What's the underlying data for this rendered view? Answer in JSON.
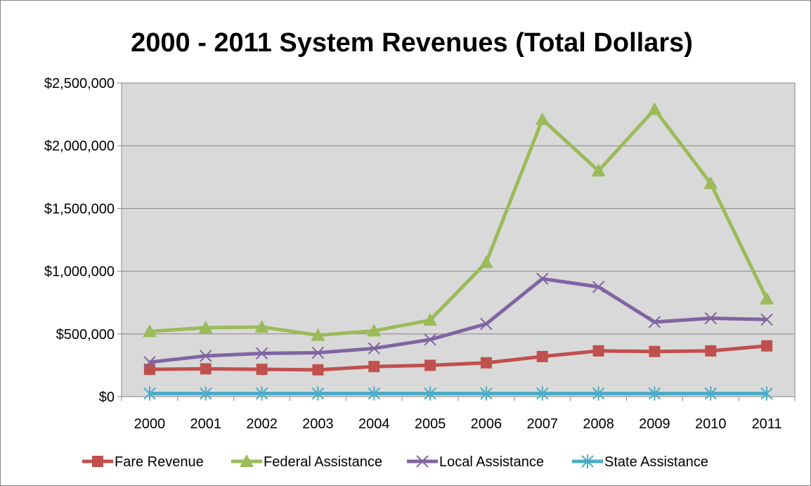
{
  "chart_data": {
    "type": "line",
    "title": "2000 - 2011 System Revenues (Total Dollars)",
    "xlabel": "",
    "ylabel": "",
    "categories": [
      "2000",
      "2001",
      "2002",
      "2003",
      "2004",
      "2005",
      "2006",
      "2007",
      "2008",
      "2009",
      "2010",
      "2011"
    ],
    "ylim": [
      0,
      2500000
    ],
    "yticks": [
      0,
      500000,
      1000000,
      1500000,
      2000000,
      2500000
    ],
    "ytick_labels": [
      "$0",
      "$500,000",
      "$1,000,000",
      "$1,500,000",
      "$2,000,000",
      "$2,500,000"
    ],
    "grid": true,
    "plot_background": "#d9d9d9",
    "legend_position": "bottom",
    "series": [
      {
        "name": "Fare Revenue",
        "color": "#c0504d",
        "marker": "square",
        "values": [
          218000,
          222000,
          218000,
          214000,
          240000,
          250000,
          270000,
          320000,
          365000,
          360000,
          365000,
          405000
        ]
      },
      {
        "name": "Federal Assistance",
        "color": "#9bbb59",
        "marker": "triangle",
        "values": [
          520000,
          550000,
          555000,
          490000,
          525000,
          610000,
          1070000,
          2210000,
          1800000,
          2290000,
          1700000,
          780000
        ]
      },
      {
        "name": "Local Assistance",
        "color": "#8064a2",
        "marker": "x",
        "values": [
          275000,
          325000,
          345000,
          350000,
          385000,
          455000,
          580000,
          940000,
          875000,
          595000,
          625000,
          615000
        ]
      },
      {
        "name": "State Assistance",
        "color": "#4bacc6",
        "marker": "asterisk",
        "values": [
          25000,
          25000,
          25000,
          25000,
          25000,
          25000,
          25000,
          25000,
          25000,
          25000,
          25000,
          25000
        ]
      }
    ]
  }
}
